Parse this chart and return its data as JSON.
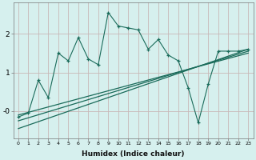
{
  "xlabel": "Humidex (Indice chaleur)",
  "bg_color": "#d6f0ee",
  "line_color": "#1a6b5a",
  "grid_color": "#c8b8b8",
  "x_jagged": [
    0,
    1,
    2,
    3,
    4,
    5,
    6,
    7,
    8,
    9,
    10,
    11,
    12,
    13,
    14,
    15,
    16,
    17,
    18,
    19,
    20,
    21,
    22,
    23
  ],
  "y_jagged": [
    -0.15,
    -0.05,
    0.8,
    0.35,
    1.5,
    1.3,
    1.9,
    1.35,
    1.2,
    2.55,
    2.2,
    2.15,
    2.1,
    1.6,
    1.85,
    1.45,
    1.3,
    0.6,
    -0.3,
    0.7,
    1.55,
    1.55,
    1.55,
    1.6
  ],
  "y_line1_start": -0.45,
  "y_line1_end": 1.6,
  "y_line2_start": -0.25,
  "y_line2_end": 1.55,
  "y_line3_start": -0.1,
  "y_line3_end": 1.5,
  "ylim": [
    -0.7,
    2.8
  ],
  "xlim": [
    -0.5,
    23.5
  ],
  "yticks": [
    0,
    1,
    2
  ],
  "ytick_labels": [
    "-0",
    "1",
    "2"
  ],
  "xticks": [
    0,
    1,
    2,
    3,
    4,
    5,
    6,
    7,
    8,
    9,
    10,
    11,
    12,
    13,
    14,
    15,
    16,
    17,
    18,
    19,
    20,
    21,
    22,
    23
  ]
}
